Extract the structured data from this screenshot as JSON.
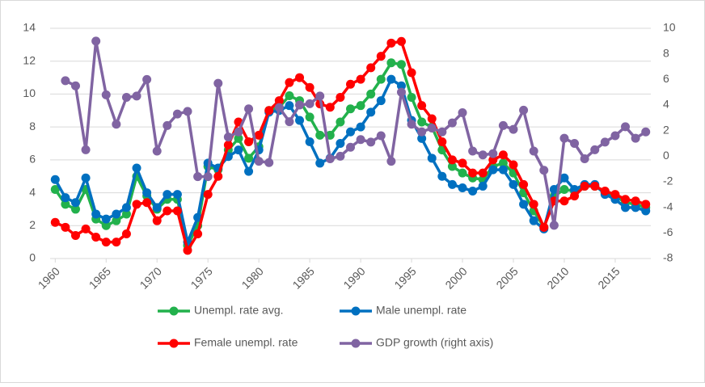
{
  "chart_data": {
    "type": "line",
    "x": [
      1960,
      1961,
      1962,
      1963,
      1964,
      1965,
      1966,
      1967,
      1968,
      1969,
      1970,
      1971,
      1972,
      1973,
      1974,
      1975,
      1976,
      1977,
      1978,
      1979,
      1980,
      1981,
      1982,
      1983,
      1984,
      1985,
      1986,
      1987,
      1988,
      1989,
      1990,
      1991,
      1992,
      1993,
      1994,
      1995,
      1996,
      1997,
      1998,
      1999,
      2000,
      2001,
      2002,
      2003,
      2004,
      2005,
      2006,
      2007,
      2008,
      2009,
      2010,
      2011,
      2012,
      2013,
      2014,
      2015,
      2016,
      2017,
      2018
    ],
    "xlim": [
      1959.5,
      2018.5
    ],
    "xticks": [
      1960,
      1965,
      1970,
      1975,
      1980,
      1985,
      1990,
      1995,
      2000,
      2005,
      2010,
      2015
    ],
    "ylim": [
      0,
      14
    ],
    "yticks": [
      0,
      2,
      4,
      6,
      8,
      10,
      12,
      14
    ],
    "y2lim": [
      -8,
      10
    ],
    "y2ticks": [
      -8,
      -6,
      -4,
      -2,
      0,
      2,
      4,
      6,
      8,
      10
    ],
    "grid": true,
    "legend": "bottom",
    "series": [
      {
        "name": "Unempl. rate avg.",
        "color": "#22b14c",
        "values": [
          4.2,
          3.3,
          3.0,
          4.2,
          2.4,
          2.0,
          2.3,
          2.7,
          5.0,
          3.8,
          3.0,
          3.6,
          3.6,
          0.8,
          2.0,
          5.6,
          5.4,
          6.6,
          7.3,
          6.1,
          6.8,
          9.0,
          9.2,
          9.9,
          9.6,
          8.6,
          7.5,
          7.5,
          8.3,
          9.1,
          9.3,
          10.0,
          10.9,
          11.9,
          11.8,
          9.8,
          8.3,
          8.0,
          6.6,
          5.6,
          5.2,
          4.9,
          4.8,
          5.6,
          5.8,
          5.2,
          4.0,
          2.9,
          1.9,
          3.8,
          4.2,
          4.1,
          4.4,
          4.4,
          4.0,
          3.8,
          3.4,
          3.3,
          3.1
        ]
      },
      {
        "name": "Male unempl. rate",
        "color": "#0070c0",
        "values": [
          4.8,
          3.7,
          3.4,
          4.9,
          2.7,
          2.4,
          2.7,
          3.1,
          5.5,
          4.0,
          3.1,
          3.9,
          3.9,
          1.0,
          2.5,
          5.8,
          5.5,
          6.2,
          6.6,
          5.3,
          6.6,
          8.9,
          9.0,
          9.3,
          8.4,
          7.1,
          5.8,
          6.1,
          7.0,
          7.7,
          8.0,
          8.9,
          9.6,
          10.9,
          10.5,
          8.4,
          7.3,
          6.1,
          5.0,
          4.5,
          4.3,
          4.1,
          4.4,
          5.4,
          5.4,
          4.5,
          3.3,
          2.3,
          1.8,
          4.2,
          4.9,
          4.2,
          4.5,
          4.5,
          3.9,
          3.6,
          3.1,
          3.1,
          2.9
        ]
      },
      {
        "name": "Female unempl. rate",
        "color": "#ff0000",
        "values": [
          2.2,
          1.9,
          1.4,
          1.8,
          1.3,
          1.0,
          1.0,
          1.5,
          3.3,
          3.4,
          2.3,
          2.9,
          2.9,
          0.5,
          1.5,
          3.9,
          5.0,
          6.9,
          8.3,
          7.1,
          7.5,
          9.0,
          9.6,
          10.7,
          11.0,
          10.4,
          9.4,
          9.2,
          9.8,
          10.6,
          10.9,
          11.6,
          12.3,
          13.1,
          13.2,
          11.3,
          9.3,
          8.5,
          7.1,
          6.0,
          5.8,
          5.2,
          5.2,
          6.0,
          6.3,
          5.7,
          4.5,
          3.3,
          1.9,
          3.5,
          3.5,
          3.8,
          4.4,
          4.4,
          4.1,
          3.9,
          3.6,
          3.5,
          3.3
        ]
      },
      {
        "name": "GDP growth (right axis)",
        "color": "#8064a2",
        "axis": "y2",
        "values": [
          null,
          5.9,
          5.5,
          0.5,
          9.0,
          4.8,
          2.5,
          4.6,
          4.7,
          6.0,
          0.4,
          2.4,
          3.3,
          3.5,
          -1.6,
          -1.6,
          5.7,
          1.5,
          1.9,
          3.7,
          -0.4,
          -0.5,
          3.8,
          2.7,
          4.0,
          4.1,
          4.7,
          -0.2,
          0.0,
          0.7,
          1.3,
          1.1,
          1.6,
          -0.4,
          5.0,
          2.5,
          1.9,
          2.2,
          1.9,
          2.6,
          3.4,
          0.4,
          0.1,
          0.2,
          2.4,
          2.1,
          3.6,
          0.4,
          -1.1,
          -5.4,
          1.4,
          1.0,
          -0.2,
          0.5,
          1.1,
          1.6,
          2.3,
          1.4,
          1.9
        ]
      }
    ]
  }
}
